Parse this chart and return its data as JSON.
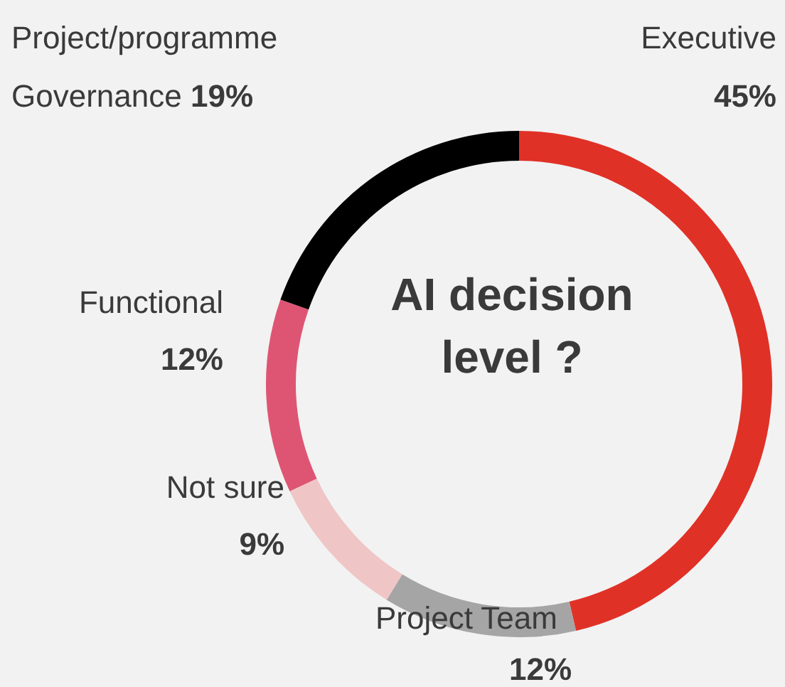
{
  "chart_data": {
    "type": "donut",
    "title": "AI decision level ?",
    "categories": [
      "Executive",
      "Project Team",
      "Not sure",
      "Functional",
      "Project/programme Governance"
    ],
    "values": [
      45,
      12,
      9,
      12,
      19
    ],
    "value_labels": [
      "45%",
      "12%",
      "9%",
      "12%",
      "19%"
    ],
    "colors": [
      "#e03127",
      "#a5a5a5",
      "#f0c5c5",
      "#de5573",
      "#000000"
    ]
  }
}
